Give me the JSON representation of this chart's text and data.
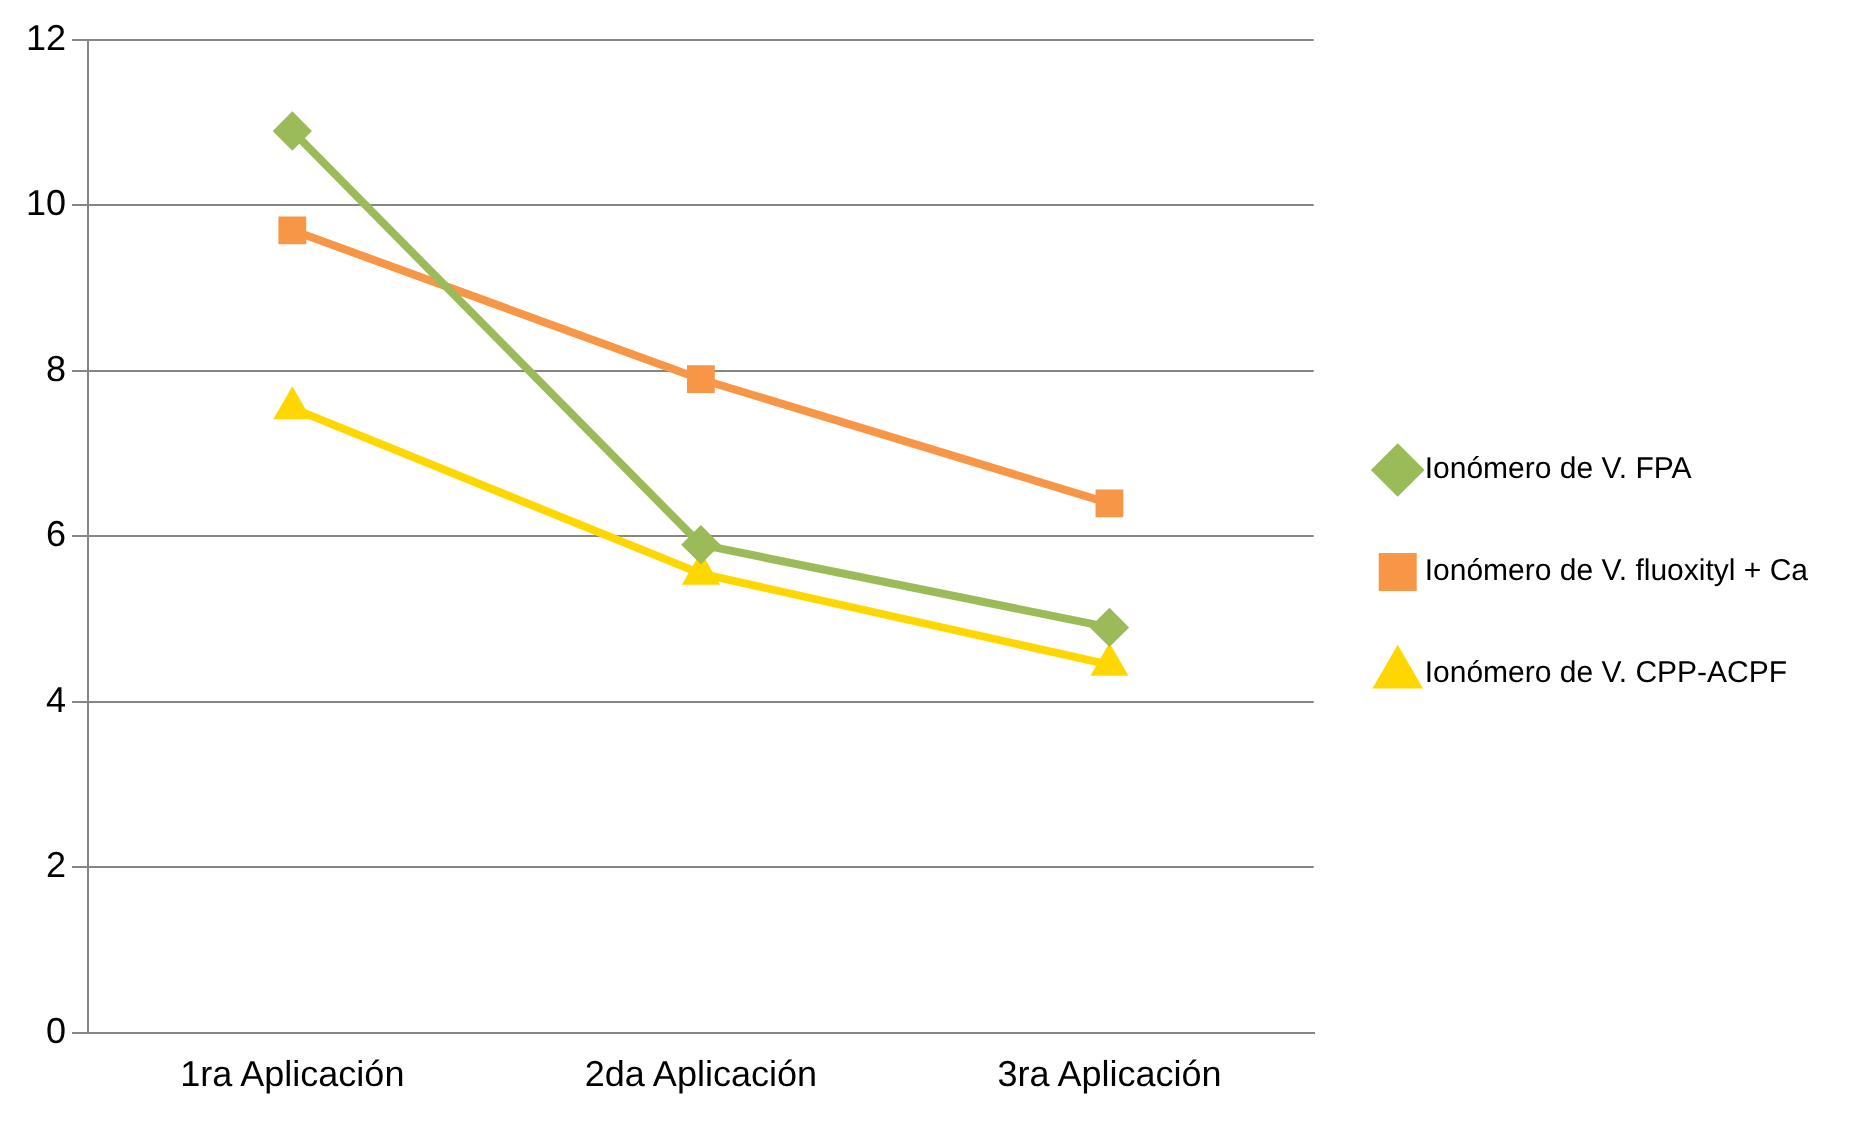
{
  "chart_data": {
    "type": "line",
    "categories": [
      "1ra Aplicación",
      "2da Aplicación",
      "3ra Aplicación"
    ],
    "series": [
      {
        "name": "Ionómero de V. FPA",
        "color": "#9bbb59",
        "values": [
          10.9,
          5.9,
          4.9
        ],
        "marker": "diamond"
      },
      {
        "name": "Ionómero de V. fluoxityl + Ca",
        "color": "#f79646",
        "values": [
          9.7,
          7.9,
          6.4
        ],
        "marker": "square"
      },
      {
        "name": "Ionómero de V. CPP-ACPF",
        "color": "#ffd700",
        "values": [
          7.55,
          5.55,
          4.45
        ],
        "marker": "triangle"
      }
    ],
    "ylim": [
      0,
      12
    ],
    "yticks": [
      0,
      2,
      4,
      6,
      8,
      10,
      12
    ],
    "grid": "y",
    "legend": "right",
    "line_style": "solid"
  }
}
